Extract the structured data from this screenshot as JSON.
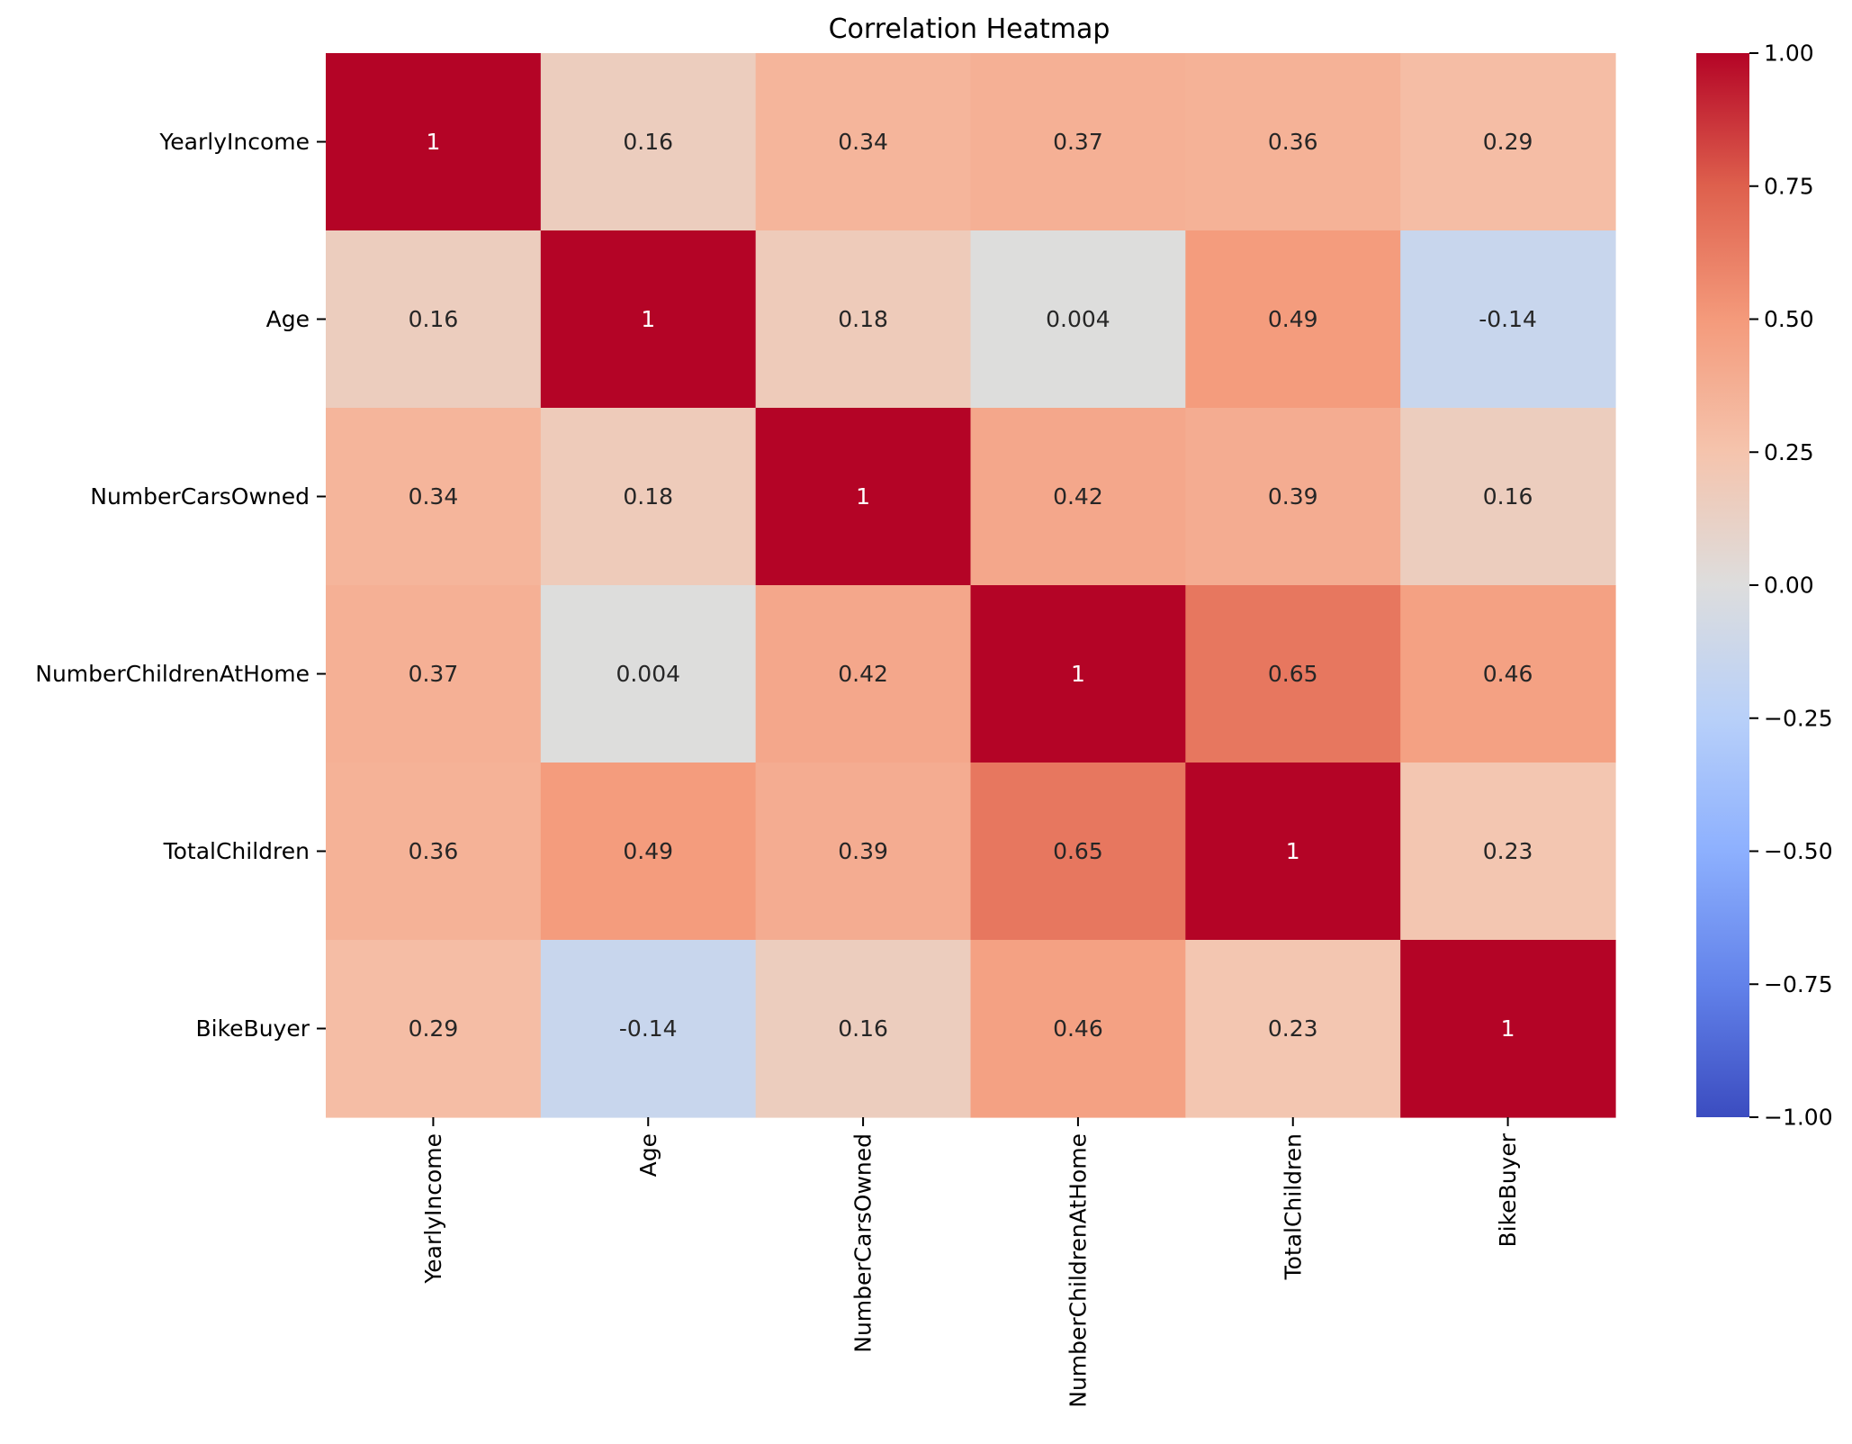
{
  "chart_data": {
    "type": "heatmap",
    "title": "Correlation Heatmap",
    "xlabel": "",
    "ylabel": "",
    "x_categories": [
      "YearlyIncome",
      "Age",
      "NumberCarsOwned",
      "NumberChildrenAtHome",
      "TotalChildren",
      "BikeBuyer"
    ],
    "y_categories": [
      "YearlyIncome",
      "Age",
      "NumberCarsOwned",
      "NumberChildrenAtHome",
      "TotalChildren",
      "BikeBuyer"
    ],
    "values": [
      [
        1,
        0.16,
        0.34,
        0.37,
        0.36,
        0.29
      ],
      [
        0.16,
        1,
        0.18,
        0.004,
        0.49,
        -0.14
      ],
      [
        0.34,
        0.18,
        1,
        0.42,
        0.39,
        0.16
      ],
      [
        0.37,
        0.004,
        0.42,
        1,
        0.65,
        0.46
      ],
      [
        0.36,
        0.49,
        0.39,
        0.65,
        1,
        0.23
      ],
      [
        0.29,
        -0.14,
        0.16,
        0.46,
        0.23,
        1
      ]
    ],
    "annotations": [
      [
        "1",
        "0.16",
        "0.34",
        "0.37",
        "0.36",
        "0.29"
      ],
      [
        "0.16",
        "1",
        "0.18",
        "0.004",
        "0.49",
        "-0.14"
      ],
      [
        "0.34",
        "0.18",
        "1",
        "0.42",
        "0.39",
        "0.16"
      ],
      [
        "0.37",
        "0.004",
        "0.42",
        "1",
        "0.65",
        "0.46"
      ],
      [
        "0.36",
        "0.49",
        "0.39",
        "0.65",
        "1",
        "0.23"
      ],
      [
        "0.29",
        "-0.14",
        "0.16",
        "0.46",
        "0.23",
        "1"
      ]
    ],
    "colormap": "coolwarm",
    "vmin": -1,
    "vmax": 1,
    "colorbar": {
      "ticks": [
        1,
        0.75,
        0.5,
        0.25,
        0,
        -0.25,
        -0.5,
        -0.75,
        -1
      ],
      "tick_labels": [
        "1.00",
        "0.75",
        "0.50",
        "0.25",
        "0.00",
        "−0.25",
        "−0.50",
        "−0.75",
        "−1.00"
      ]
    },
    "grid": false,
    "legend": "colorbar-right"
  }
}
